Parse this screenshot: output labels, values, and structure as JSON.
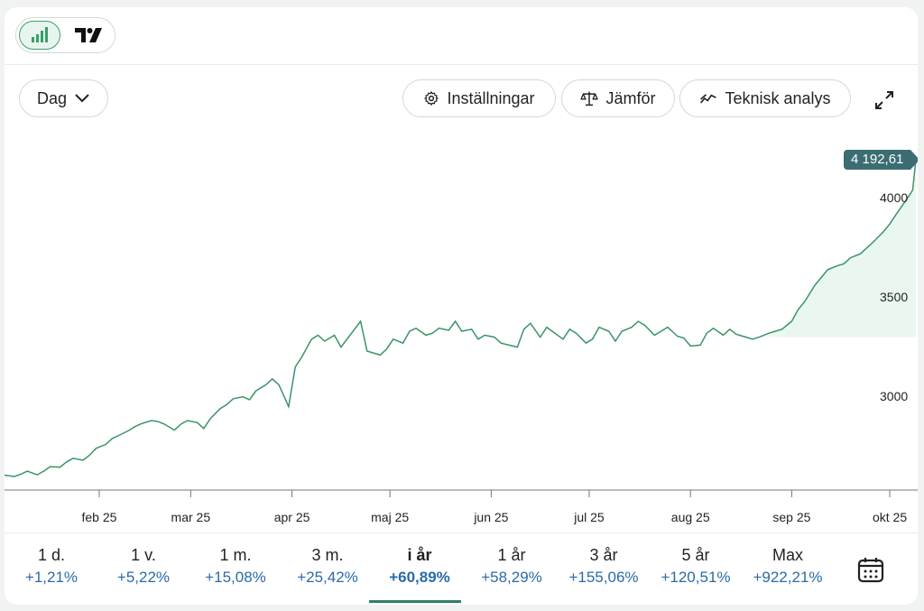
{
  "toolbar": {
    "chart_types": [
      "bar-chart-icon",
      "tradingview-icon"
    ],
    "interval_label": "Dag",
    "settings_label": "Inställningar",
    "compare_label": "Jämför",
    "technical_label": "Teknisk analys"
  },
  "price_tag": "4 192,61",
  "colors": {
    "line": "#3a9467",
    "area": "#eaf7f1",
    "price_tag": "#3b6d73",
    "positive": "#2b6aa8",
    "active_tab": "#2f7f6a"
  },
  "chart_data": {
    "type": "line",
    "x": [
      "2025-01-03",
      "2025-01-06",
      "2025-01-08",
      "2025-01-10",
      "2025-01-13",
      "2025-01-15",
      "2025-01-17",
      "2025-01-20",
      "2025-01-22",
      "2025-01-24",
      "2025-01-27",
      "2025-01-29",
      "2025-01-31",
      "2025-02-03",
      "2025-02-05",
      "2025-02-07",
      "2025-02-10",
      "2025-02-12",
      "2025-02-14",
      "2025-02-17",
      "2025-02-19",
      "2025-02-21",
      "2025-02-24",
      "2025-02-26",
      "2025-02-28",
      "2025-03-03",
      "2025-03-05",
      "2025-03-07",
      "2025-03-10",
      "2025-03-12",
      "2025-03-14",
      "2025-03-17",
      "2025-03-19",
      "2025-03-21",
      "2025-03-24",
      "2025-03-26",
      "2025-03-28",
      "2025-03-31",
      "2025-04-02",
      "2025-04-04",
      "2025-04-07",
      "2025-04-09",
      "2025-04-11",
      "2025-04-14",
      "2025-04-16",
      "2025-04-22",
      "2025-04-24",
      "2025-04-28",
      "2025-04-30",
      "2025-05-02",
      "2025-05-05",
      "2025-05-07",
      "2025-05-09",
      "2025-05-12",
      "2025-05-14",
      "2025-05-16",
      "2025-05-19",
      "2025-05-21",
      "2025-05-23",
      "2025-05-26",
      "2025-05-28",
      "2025-05-30",
      "2025-06-02",
      "2025-06-04",
      "2025-06-09",
      "2025-06-11",
      "2025-06-13",
      "2025-06-16",
      "2025-06-18",
      "2025-06-23",
      "2025-06-25",
      "2025-06-27",
      "2025-06-30",
      "2025-07-02",
      "2025-07-04",
      "2025-07-07",
      "2025-07-09",
      "2025-07-11",
      "2025-07-14",
      "2025-07-16",
      "2025-07-18",
      "2025-07-21",
      "2025-07-23",
      "2025-07-25",
      "2025-07-28",
      "2025-07-30",
      "2025-08-01",
      "2025-08-04",
      "2025-08-06",
      "2025-08-08",
      "2025-08-11",
      "2025-08-13",
      "2025-08-15",
      "2025-08-18",
      "2025-08-20",
      "2025-08-22",
      "2025-08-25",
      "2025-08-27",
      "2025-08-29",
      "2025-09-01",
      "2025-09-03",
      "2025-09-05",
      "2025-09-08",
      "2025-09-10",
      "2025-09-12",
      "2025-09-15",
      "2025-09-17",
      "2025-09-19",
      "2025-09-22",
      "2025-09-24",
      "2025-09-26",
      "2025-09-29",
      "2025-10-01",
      "2025-10-03",
      "2025-10-06",
      "2025-10-08"
    ],
    "series": [
      {
        "values": [
          2605,
          2598,
          2610,
          2625,
          2607,
          2625,
          2648,
          2645,
          2672,
          2690,
          2680,
          2705,
          2740,
          2760,
          2790,
          2805,
          2830,
          2850,
          2865,
          2880,
          2875,
          2862,
          2832,
          2862,
          2880,
          2870,
          2840,
          2890,
          2940,
          2960,
          2990,
          3000,
          2985,
          3030,
          3060,
          3090,
          3060,
          2950,
          3150,
          3200,
          3290,
          3310,
          3280,
          3310,
          3250,
          3380,
          3230,
          3210,
          3240,
          3290,
          3270,
          3330,
          3345,
          3310,
          3320,
          3345,
          3335,
          3380,
          3330,
          3340,
          3290,
          3310,
          3300,
          3270,
          3250,
          3340,
          3370,
          3300,
          3350,
          3290,
          3340,
          3320,
          3270,
          3290,
          3350,
          3330,
          3280,
          3330,
          3350,
          3380,
          3360,
          3310,
          3330,
          3350,
          3305,
          3295,
          3255,
          3260,
          3320,
          3345,
          3310,
          3340,
          3315,
          3300,
          3290,
          3300,
          3320,
          3330,
          3340,
          3380,
          3440,
          3480,
          3560,
          3600,
          3640,
          3660,
          3670,
          3700,
          3720,
          3750,
          3780,
          3830,
          3870,
          3920,
          3990,
          4040
        ],
        "last_value": 4192.61
      }
    ],
    "ylim": [
      2530,
      4280
    ],
    "y_ticks": [
      "3000",
      "3500",
      "4000"
    ],
    "y_tick_values": [
      3000,
      3500,
      4000
    ],
    "x_ticks": [
      "feb 25",
      "mar 25",
      "apr 25",
      "maj 25",
      "jun 25",
      "jul 25",
      "aug 25",
      "sep 25",
      "okt 25"
    ],
    "x_tick_dates": [
      "2025-02-01",
      "2025-03-01",
      "2025-04-01",
      "2025-05-01",
      "2025-06-01",
      "2025-07-01",
      "2025-08-01",
      "2025-09-01",
      "2025-10-01"
    ],
    "grid": false
  },
  "periods": [
    {
      "label": "1 d.",
      "change": "+1,21%"
    },
    {
      "label": "1 v.",
      "change": "+5,22%"
    },
    {
      "label": "1 m.",
      "change": "+15,08%"
    },
    {
      "label": "3 m.",
      "change": "+25,42%"
    },
    {
      "label": "i år",
      "change": "+60,89%",
      "active": true
    },
    {
      "label": "1 år",
      "change": "+58,29%"
    },
    {
      "label": "3 år",
      "change": "+155,06%"
    },
    {
      "label": "5 år",
      "change": "+120,51%"
    },
    {
      "label": "Max",
      "change": "+922,21%"
    }
  ]
}
